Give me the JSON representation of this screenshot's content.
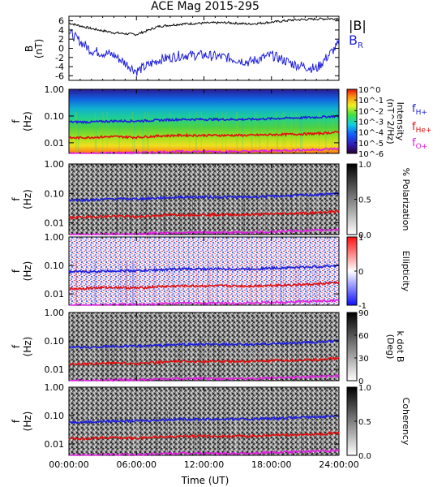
{
  "title": "ACE Mag 2015-295",
  "colors": {
    "blue": "#1f1fdd",
    "red": "#e01010",
    "magenta": "#e020e0",
    "black": "#000000"
  },
  "x_axis": {
    "label": "Time (UT)",
    "ticks": [
      "00:00:00",
      "06:00:00",
      "12:00:00",
      "18:00:00",
      "24:00:00"
    ]
  },
  "f_ticks": [
    "1.00",
    "0.10",
    "0.01"
  ],
  "panels": {
    "b": {
      "ylabel_line1": "B",
      "ylabel_line2": "(nT)",
      "ticks": [
        "6",
        "4",
        "2",
        "0",
        "-2",
        "-4",
        "-6"
      ],
      "legend_abs": "|B|",
      "legend_br": "B",
      "legend_br_sub": "R"
    },
    "intensity": {
      "colorbar_ticks": [
        "10^0",
        "10^-1",
        "10^-2",
        "10^-3",
        "10^-4",
        "10^-5",
        "10^-6"
      ],
      "cb_label_1": "Intensity",
      "cb_label_2": "(nT^2/Hz)",
      "legend": [
        {
          "base": "f",
          "sub": "H+",
          "color_key": "blue"
        },
        {
          "base": "f",
          "sub": "He+",
          "color_key": "red"
        },
        {
          "base": "f",
          "sub": "O+",
          "color_key": "magenta"
        }
      ]
    },
    "polarization": {
      "cb_label": "% Polarization",
      "colorbar_ticks": [
        "1.0",
        "0.5",
        "0.0"
      ]
    },
    "ellipticity": {
      "cb_label": "Ellipticity",
      "colorbar_ticks": [
        "1",
        "0",
        "-1"
      ]
    },
    "kdotb": {
      "cb_label_1": "k dot B",
      "cb_label_2": "(Deg)",
      "colorbar_ticks": [
        "90",
        "60",
        "30",
        "0"
      ]
    },
    "coherency": {
      "cb_label": "Coherency",
      "colorbar_ticks": [
        "1.0",
        "0.5",
        "0.0"
      ]
    }
  },
  "f_label_1": "f",
  "f_label_2": "(Hz)",
  "chart_data": {
    "type": "line",
    "title": "ACE Mag 2015-295",
    "xlabel": "Time (UT)",
    "x_hours": [
      0,
      2,
      4,
      6,
      8,
      10,
      12,
      14,
      16,
      18,
      20,
      22,
      24
    ],
    "series": [
      {
        "name": "|B|",
        "panel": "B",
        "values": [
          5.5,
          4.3,
          3.4,
          3.0,
          4.8,
          5.3,
          5.5,
          5.6,
          5.3,
          5.7,
          6.2,
          6.4,
          6.5
        ]
      },
      {
        "name": "B_R",
        "panel": "B",
        "values": [
          3.5,
          -0.5,
          -1.5,
          -5.0,
          -2.5,
          -1.5,
          -1.5,
          -2.0,
          -3.0,
          -1.5,
          -3.5,
          -4.5,
          1.0
        ]
      },
      {
        "name": "f_H+",
        "panel": "spectral",
        "values": [
          0.06,
          0.06,
          0.065,
          0.065,
          0.07,
          0.075,
          0.075,
          0.075,
          0.075,
          0.08,
          0.085,
          0.09,
          0.1
        ]
      },
      {
        "name": "f_He+",
        "panel": "spectral",
        "values": [
          0.015,
          0.016,
          0.017,
          0.016,
          0.018,
          0.019,
          0.019,
          0.019,
          0.019,
          0.02,
          0.021,
          0.022,
          0.025
        ]
      },
      {
        "name": "f_O+",
        "panel": "spectral",
        "values": [
          0.004,
          0.004,
          0.0042,
          0.0042,
          0.0045,
          0.0047,
          0.0047,
          0.0047,
          0.0047,
          0.005,
          0.0053,
          0.0055,
          0.006
        ]
      }
    ],
    "b_ylim": [
      -7,
      7
    ],
    "f_ylim": [
      0.004,
      1.0
    ],
    "f_scale": "log"
  }
}
